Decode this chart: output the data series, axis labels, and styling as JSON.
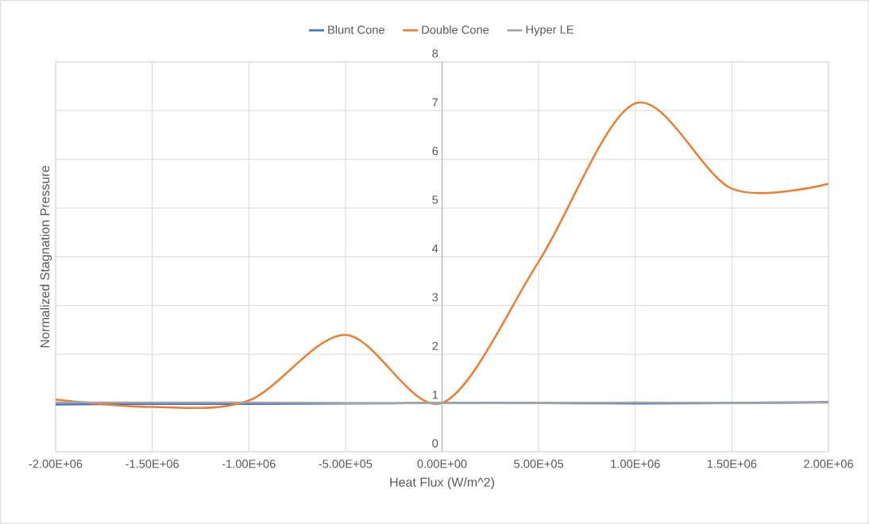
{
  "chart_data": {
    "type": "line",
    "xlabel": "Heat Flux (W/m^2)",
    "ylabel": "Normalized Stagnation Pressure",
    "x": [
      -2000000,
      -1500000,
      -1000000,
      -500000,
      0,
      500000,
      1000000,
      1500000,
      2000000
    ],
    "series": [
      {
        "name": "Blunt Cone",
        "color": "#4472c4",
        "values": [
          0.97,
          0.98,
          0.98,
          0.99,
          1.0,
          1.0,
          0.99,
          1.0,
          1.02
        ]
      },
      {
        "name": "Double Cone",
        "color": "#ed7d31",
        "values": [
          1.07,
          0.92,
          1.05,
          2.4,
          1.0,
          3.9,
          7.15,
          5.4,
          5.5
        ]
      },
      {
        "name": "Hyper LE",
        "color": "#a5a5a5",
        "values": [
          1.01,
          1.01,
          1.01,
          1.0,
          1.0,
          1.0,
          1.01,
          1.0,
          1.01
        ]
      }
    ],
    "xlim": [
      -2000000,
      2000000
    ],
    "xticks": [
      {
        "value": -2000000,
        "label": "-2.00E+06"
      },
      {
        "value": -1500000,
        "label": "-1.50E+06"
      },
      {
        "value": -1000000,
        "label": "-1.00E+06"
      },
      {
        "value": -500000,
        "label": "-5.00E+05"
      },
      {
        "value": 0,
        "label": "0.00E+00"
      },
      {
        "value": 500000,
        "label": "5.00E+05"
      },
      {
        "value": 1000000,
        "label": "1.00E+06"
      },
      {
        "value": 1500000,
        "label": "1.50E+06"
      },
      {
        "value": 2000000,
        "label": "2.00E+06"
      }
    ],
    "ylim": [
      0,
      8
    ],
    "yticks": [
      0,
      1,
      2,
      3,
      4,
      5,
      6,
      7,
      8
    ],
    "grid": true,
    "legend": "top"
  }
}
